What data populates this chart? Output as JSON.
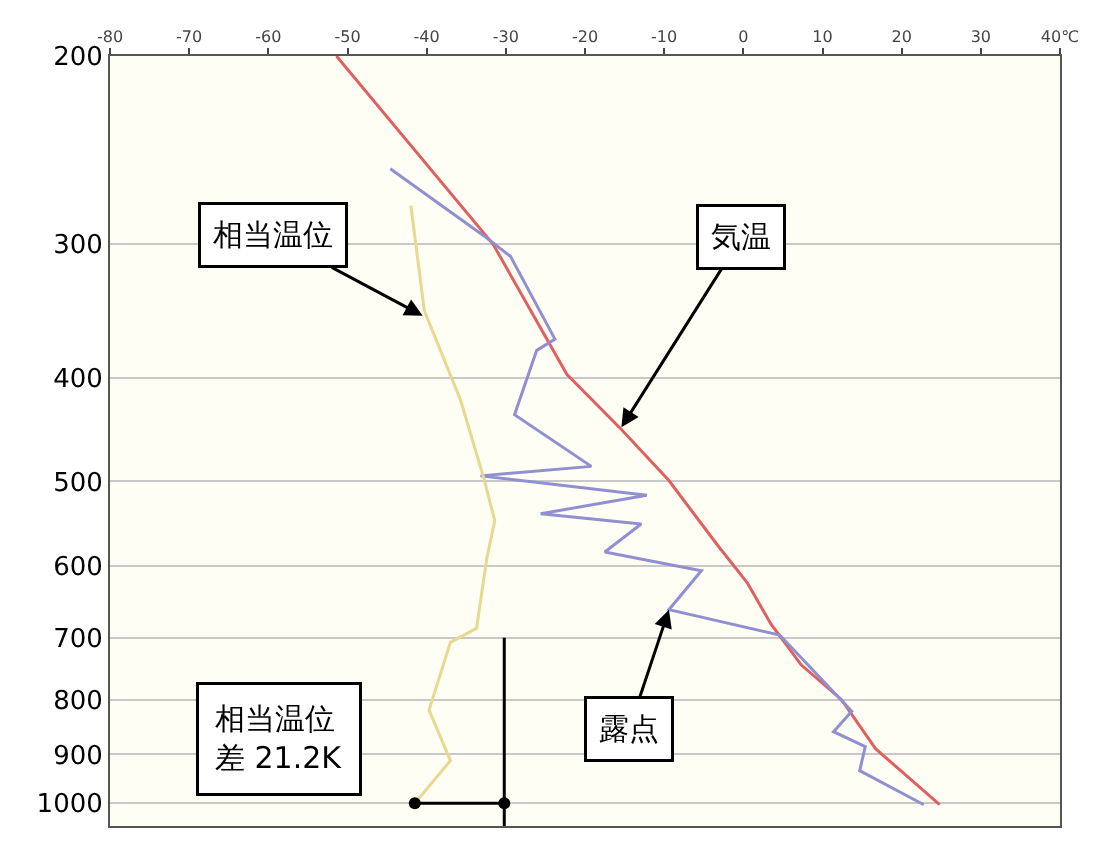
{
  "chart_data": {
    "type": "line",
    "log": "y",
    "grid": "y",
    "marker": "none",
    "line_style": "solid",
    "xlim": [
      -80,
      40
    ],
    "xticks": [
      -80,
      -70,
      -60,
      -50,
      -40,
      -30,
      -20,
      -10,
      0,
      10,
      20,
      {
        "value": 30,
        "label": "30"
      },
      {
        "value": 40,
        "label": "40℃"
      }
    ],
    "ylim": [
      1050,
      200
    ],
    "yticks": [
      200,
      300,
      400,
      500,
      600,
      700,
      800,
      900,
      1000
    ],
    "series": [
      {
        "color": "#e06060",
        "x": [
          -51.4,
          -31.6,
          -22.3,
          -15.4,
          -9.4,
          -3.3,
          0.5,
          3.5,
          7.3,
          12.4,
          16.7,
          24.8
        ],
        "values": [
          200,
          300,
          397,
          447,
          499,
          573,
          622,
          680,
          742,
          800,
          889,
          1003
        ]
      },
      {
        "color": "#9090d0",
        "x": [
          -44.6,
          -32.4,
          -29.4,
          -23.8,
          -26.1,
          -28.9,
          -19.2,
          -33.2,
          -12.2,
          -25.6,
          -12.9,
          -17.5,
          -5.3,
          -9.4,
          4.6,
          13.7,
          11.4,
          15.4,
          14.7,
          22.8
        ],
        "values": [
          255,
          296,
          308,
          368,
          377,
          433,
          484,
          494,
          515,
          536,
          548,
          582,
          606,
          659,
          696,
          820,
          857,
          885,
          932,
          1003
        ]
      },
      {
        "color": "#e8d890",
        "x": [
          -42.0,
          -40.3,
          -35.7,
          -32.7,
          -31.4,
          -32.4,
          -33.7,
          -37.0,
          -39.7,
          -37.0,
          -41.5
        ],
        "values": [
          276,
          346,
          420,
          499,
          544,
          590,
          686,
          707,
          818,
          912,
          1000
        ]
      },
      {
        "color": "#000000",
        "marker": "circle",
        "x": [
          -41.5,
          -30.2
        ],
        "values": [
          1000,
          1000
        ]
      },
      {
        "color": "#000000",
        "x": [
          -30.2,
          -30.2
        ],
        "values": [
          700,
          1050
        ]
      }
    ],
    "annotations": [
      {
        "text": "相当温位",
        "x": -40.5,
        "y": 350
      },
      {
        "text": "気温",
        "x": -15.4,
        "y": 445
      },
      {
        "text": "露点",
        "x": -9.4,
        "y": 659
      },
      "相当温位差 21.2K"
    ]
  }
}
